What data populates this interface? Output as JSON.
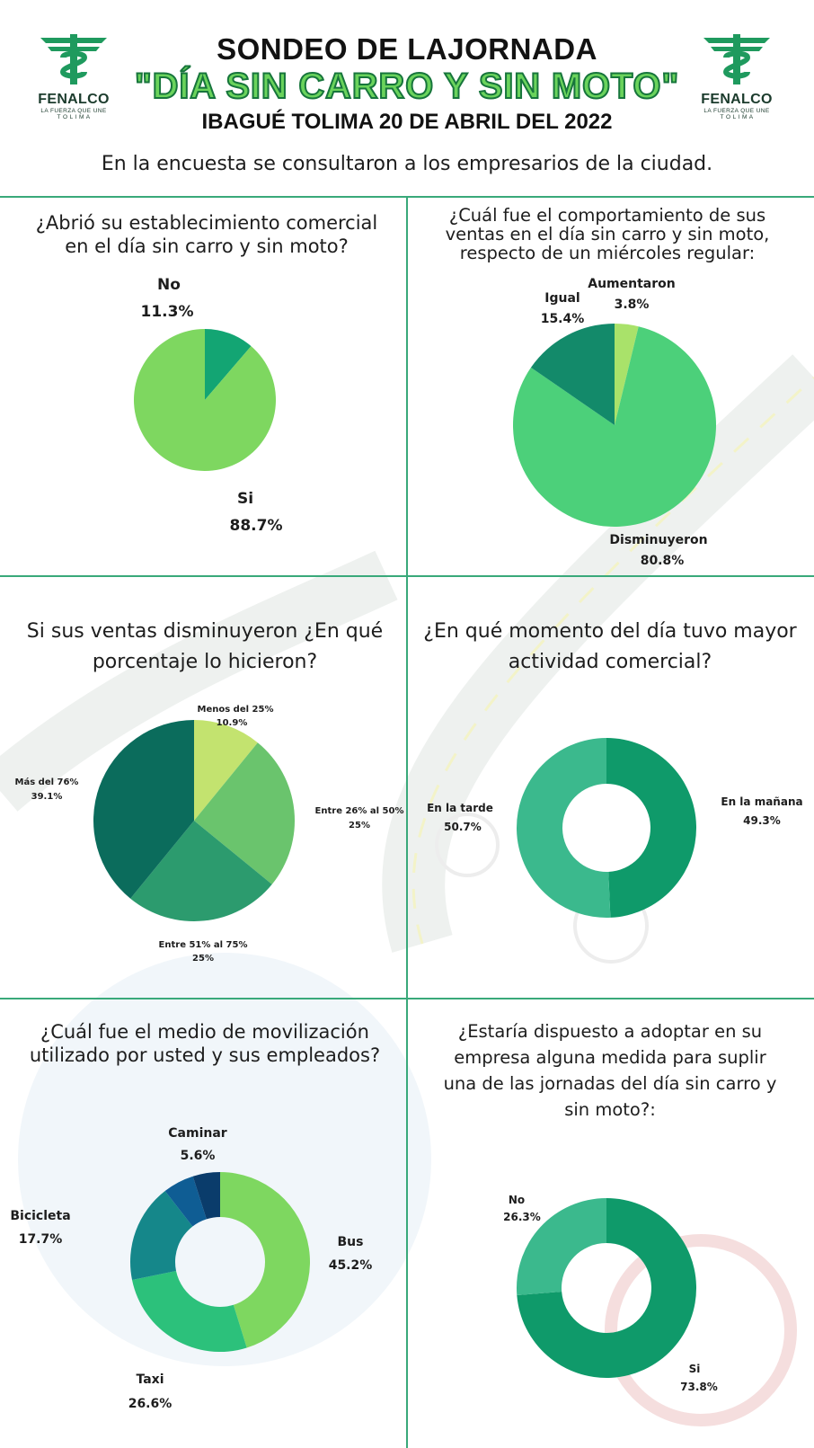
{
  "header": {
    "title_line1": "SONDEO DE LAJORNADA",
    "title_line2": "\"DÍA SIN CARRO Y SIN MOTO\"",
    "title_line3": "IBAGUÉ TOLIMA 20 DE ABRIL DEL 2022",
    "intro": "En la encuesta se consultaron a los empresarios de la ciudad."
  },
  "logo": {
    "name": "FENALCO",
    "tagline_line1": "LA FUERZA QUE UNE",
    "tagline_line2": "T O L I M A",
    "icon": "fenalco-emblem-icon",
    "color": "#1f9a5e"
  },
  "colors": {
    "divider": "#39a97a",
    "light_green": "#7ed760",
    "mid_green": "#2fb477",
    "teal": "#138a6a",
    "dark_teal": "#0b6c5c"
  },
  "panels": {
    "q1": {
      "question": [
        "¿Abrió su establecimiento comercial",
        "en el día sin carro y sin moto?"
      ]
    },
    "q2": {
      "question": [
        "¿Cuál fue el comportamiento de sus",
        "ventas en el día sin carro y sin moto,",
        "respecto de un miércoles regular:"
      ]
    },
    "q3": {
      "question": [
        "Si sus ventas disminuyeron ¿En qué",
        "porcentaje lo hicieron?"
      ]
    },
    "q4": {
      "question": [
        "¿En qué momento del día tuvo mayor",
        "actividad comercial?"
      ]
    },
    "q5": {
      "question": [
        "¿Cuál fue el medio de movilización",
        "utilizado por usted y sus empleados?"
      ]
    },
    "q6": {
      "question": [
        "¿Estaría dispuesto a adoptar en su",
        "empresa alguna medida para suplir",
        "una de las jornadas del día sin carro y",
        "sin moto?:"
      ]
    }
  },
  "chart_data": [
    {
      "id": "q1",
      "type": "pie",
      "slices": [
        {
          "label": "No",
          "value_text": "11.3%",
          "value": 11.3,
          "color": "#13a573"
        },
        {
          "label": "Si",
          "value_text": "88.7%",
          "value": 88.7,
          "color": "#7ed760"
        }
      ]
    },
    {
      "id": "q2",
      "type": "pie",
      "slices": [
        {
          "label": "Aumentaron",
          "value_text": "3.8%",
          "value": 3.8,
          "color": "#a9e26a"
        },
        {
          "label": "Disminuyeron",
          "value_text": "80.8%",
          "value": 80.8,
          "color": "#4cd07a"
        },
        {
          "label": "Igual",
          "value_text": "15.4%",
          "value": 15.4,
          "color": "#138a6a"
        }
      ]
    },
    {
      "id": "q3",
      "type": "pie",
      "slices": [
        {
          "label": "Menos del 25%",
          "value_text": "10.9%",
          "value": 10.9,
          "color": "#c3e36f"
        },
        {
          "label": "Entre 26% al 50%",
          "value_text": "25%",
          "value": 25,
          "color": "#6ac46d"
        },
        {
          "label": "Entre 51% al 75%",
          "value_text": "25%",
          "value": 25,
          "color": "#2c9b6e"
        },
        {
          "label": "Más del 76%",
          "value_text": "39.1%",
          "value": 39.1,
          "color": "#0b6c5c"
        }
      ]
    },
    {
      "id": "q4",
      "type": "pie",
      "donut": true,
      "slices": [
        {
          "label": "En la mañana",
          "value_text": "49.3%",
          "value": 49.3,
          "color": "#0f9a6a"
        },
        {
          "label": "En la tarde",
          "value_text": "50.7%",
          "value": 50.7,
          "color": "#3bb98d"
        }
      ]
    },
    {
      "id": "q5",
      "type": "pie",
      "donut": true,
      "slices": [
        {
          "label": "Bus",
          "value_text": "45.2%",
          "value": 45.2,
          "color": "#7ed760"
        },
        {
          "label": "Taxi",
          "value_text": "26.6%",
          "value": 26.6,
          "color": "#2cc17b"
        },
        {
          "label": "Bicicleta",
          "value_text": "17.7%",
          "value": 17.7,
          "color": "#15878a"
        },
        {
          "label": "Caminar",
          "value_text": "5.6%",
          "value": 5.6,
          "color": "#0f5d94"
        },
        {
          "label": "",
          "value": 4.9,
          "color": "#0a3c6b"
        }
      ]
    },
    {
      "id": "q6",
      "type": "pie",
      "donut": true,
      "slices": [
        {
          "label": "Si",
          "value_text": "73.8%",
          "value": 73.8,
          "color": "#0f9a6a"
        },
        {
          "label": "No",
          "value_text": "26.3%",
          "value": 26.3,
          "color": "#3bb98d"
        }
      ]
    }
  ]
}
